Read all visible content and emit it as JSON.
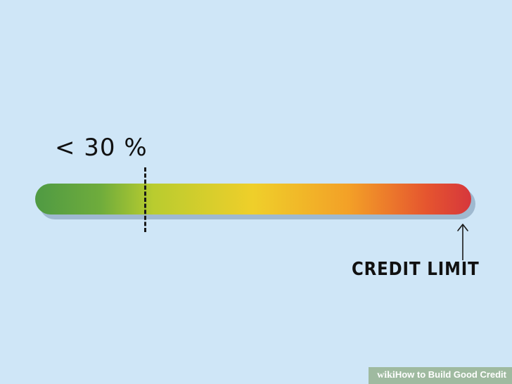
{
  "illustration": {
    "threshold_label": "< 30 %",
    "threshold_fraction": 0.25,
    "limit_label": "CREDIT LIMIT",
    "bar_colors": [
      "#4f9a43",
      "#b9cc2f",
      "#efcf2a",
      "#f3a027",
      "#d6373c"
    ],
    "background_color": "#cfe6f7"
  },
  "watermark": {
    "brand": "wiki",
    "how": "How",
    "title": "to Build Good Credit"
  }
}
